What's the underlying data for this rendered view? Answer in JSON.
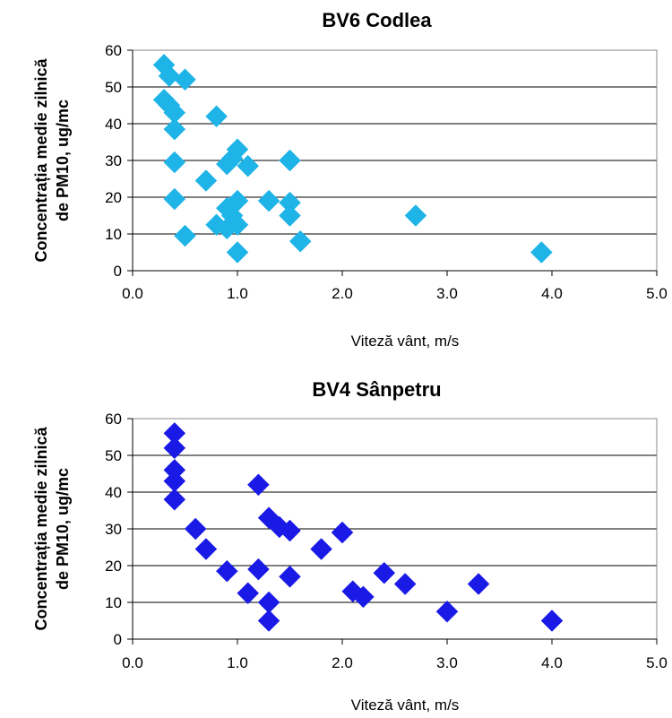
{
  "chart_data": [
    {
      "type": "scatter",
      "title": "BV6 Codlea",
      "xlabel": "Viteză vânt, m/s",
      "ylabel_lines": [
        "Concentrația medie zilnică",
        "de PM10, ug/mc"
      ],
      "xlim": [
        0,
        5
      ],
      "ylim": [
        0,
        60
      ],
      "x_ticks": [
        "0.0",
        "1.0",
        "2.0",
        "3.0",
        "4.0",
        "5.0"
      ],
      "y_ticks": [
        "0",
        "10",
        "20",
        "30",
        "40",
        "50",
        "60"
      ],
      "grid": "horizontal",
      "marker_color": "#1EB4E8",
      "series": [
        {
          "points": [
            [
              0.3,
              56
            ],
            [
              0.35,
              53
            ],
            [
              0.5,
              52
            ],
            [
              0.3,
              46.5
            ],
            [
              0.35,
              45
            ],
            [
              0.4,
              43
            ],
            [
              0.4,
              38.5
            ],
            [
              0.8,
              42
            ],
            [
              1.0,
              33
            ],
            [
              0.95,
              30.5
            ],
            [
              0.9,
              29
            ],
            [
              1.1,
              28.5
            ],
            [
              0.4,
              29.5
            ],
            [
              0.7,
              24.5
            ],
            [
              1.5,
              30
            ],
            [
              0.4,
              19.5
            ],
            [
              1.0,
              19
            ],
            [
              0.9,
              17
            ],
            [
              0.95,
              15
            ],
            [
              1.3,
              19
            ],
            [
              1.5,
              18.5
            ],
            [
              1.5,
              15
            ],
            [
              0.8,
              12.5
            ],
            [
              1.0,
              12.5
            ],
            [
              0.5,
              9.5
            ],
            [
              0.9,
              11.5
            ],
            [
              1.6,
              8
            ],
            [
              1.0,
              5
            ],
            [
              2.7,
              15
            ],
            [
              3.9,
              5
            ]
          ]
        }
      ]
    },
    {
      "type": "scatter",
      "title": "BV4 Sânpetru",
      "xlabel": "Viteză vânt, m/s",
      "ylabel_lines": [
        "Concentrația medie zilnică",
        "de PM10, ug/mc"
      ],
      "xlim": [
        0,
        5
      ],
      "ylim": [
        0,
        60
      ],
      "x_ticks": [
        "0.0",
        "1.0",
        "2.0",
        "3.0",
        "4.0",
        "5.0"
      ],
      "y_ticks": [
        "0",
        "10",
        "20",
        "30",
        "40",
        "50",
        "60"
      ],
      "grid": "horizontal",
      "marker_color": "#1A1AE6",
      "series": [
        {
          "points": [
            [
              0.4,
              56
            ],
            [
              0.4,
              52
            ],
            [
              0.4,
              46
            ],
            [
              0.4,
              43
            ],
            [
              0.4,
              38
            ],
            [
              0.6,
              30
            ],
            [
              0.7,
              24.5
            ],
            [
              0.9,
              18.5
            ],
            [
              1.1,
              12.5
            ],
            [
              1.2,
              42
            ],
            [
              1.3,
              33
            ],
            [
              1.4,
              30.5
            ],
            [
              1.5,
              29.5
            ],
            [
              1.2,
              19
            ],
            [
              1.5,
              17
            ],
            [
              1.3,
              10
            ],
            [
              1.3,
              5
            ],
            [
              1.8,
              24.5
            ],
            [
              2.0,
              29
            ],
            [
              2.1,
              13
            ],
            [
              2.2,
              11.5
            ],
            [
              2.4,
              18
            ],
            [
              2.6,
              15
            ],
            [
              3.0,
              7.5
            ],
            [
              3.3,
              15
            ],
            [
              4.0,
              5
            ]
          ]
        }
      ]
    }
  ]
}
